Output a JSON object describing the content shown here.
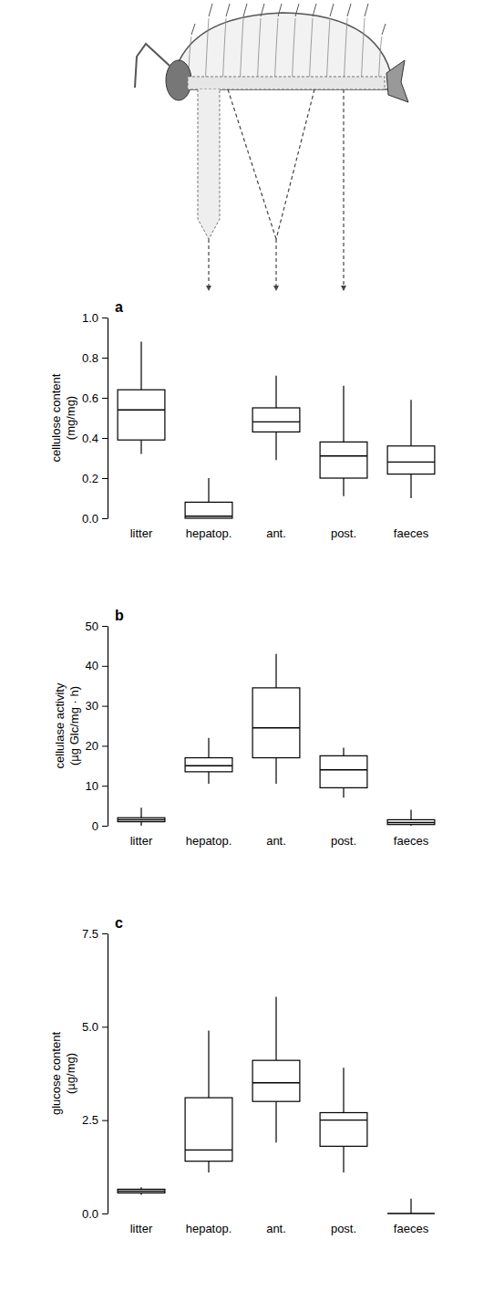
{
  "chart_data": [
    {
      "type": "box",
      "title": "a",
      "y_label": "cellulose content (mg/mg)",
      "categories": [
        "litter",
        "hepatop.",
        "ant.",
        "post.",
        "faeces"
      ],
      "boxes": [
        {
          "min": 0.32,
          "q1": 0.39,
          "median": 0.54,
          "q3": 0.64,
          "max": 0.88
        },
        {
          "min": 0.0,
          "q1": 0.0,
          "median": 0.01,
          "q3": 0.08,
          "max": 0.2
        },
        {
          "min": 0.29,
          "q1": 0.43,
          "median": 0.48,
          "q3": 0.55,
          "max": 0.71
        },
        {
          "min": 0.11,
          "q1": 0.2,
          "median": 0.31,
          "q3": 0.38,
          "max": 0.66
        },
        {
          "min": 0.1,
          "q1": 0.22,
          "median": 0.28,
          "q3": 0.36,
          "max": 0.59
        }
      ],
      "ylim": [
        0,
        1
      ],
      "yticks": [
        {
          "value": 0,
          "label": "0.0"
        },
        0.2,
        0.4,
        0.6,
        0.8,
        {
          "value": 1,
          "label": "1.0"
        }
      ]
    },
    {
      "type": "box",
      "title": "b",
      "y_label": "cellulase activity (µg Glc/mg · h)",
      "categories": [
        "litter",
        "hepatop.",
        "ant.",
        "post.",
        "faeces"
      ],
      "boxes": [
        {
          "min": 0,
          "q1": 1.0,
          "median": 1.5,
          "q3": 2.0,
          "max": 4.5
        },
        {
          "min": 10.5,
          "q1": 13.5,
          "median": 15,
          "q3": 17,
          "max": 22
        },
        {
          "min": 10.5,
          "q1": 17,
          "median": 24.5,
          "q3": 34.5,
          "max": 43
        },
        {
          "min": 7,
          "q1": 9.5,
          "median": 14,
          "q3": 17.5,
          "max": 19.5
        },
        {
          "min": 0,
          "q1": 0.3,
          "median": 0.8,
          "q3": 1.5,
          "max": 4
        }
      ],
      "ylim": [
        0,
        50
      ],
      "yticks": [
        0,
        10,
        20,
        30,
        40,
        50
      ]
    },
    {
      "type": "box",
      "title": "c",
      "y_label": "glucose content (µg/mg)",
      "categories": [
        "litter",
        "hepatop.",
        "ant.",
        "post.",
        "faeces"
      ],
      "boxes": [
        {
          "min": 0.5,
          "q1": 0.55,
          "median": 0.6,
          "q3": 0.65,
          "max": 0.7
        },
        {
          "min": 1.1,
          "q1": 1.4,
          "median": 1.7,
          "q3": 3.1,
          "max": 4.9
        },
        {
          "min": 1.9,
          "q1": 3.0,
          "median": 3.5,
          "q3": 4.1,
          "max": 5.8
        },
        {
          "min": 1.1,
          "q1": 1.8,
          "median": 2.5,
          "q3": 2.7,
          "max": 3.9
        },
        {
          "min": 0,
          "q1": 0,
          "median": 0,
          "q3": 0,
          "max": 0.4
        }
      ],
      "ylim": [
        0,
        7.5
      ],
      "yticks": [
        {
          "value": 0,
          "label": "0.0"
        },
        2.5,
        {
          "value": 5,
          "label": "5.0"
        },
        7.5
      ]
    }
  ]
}
